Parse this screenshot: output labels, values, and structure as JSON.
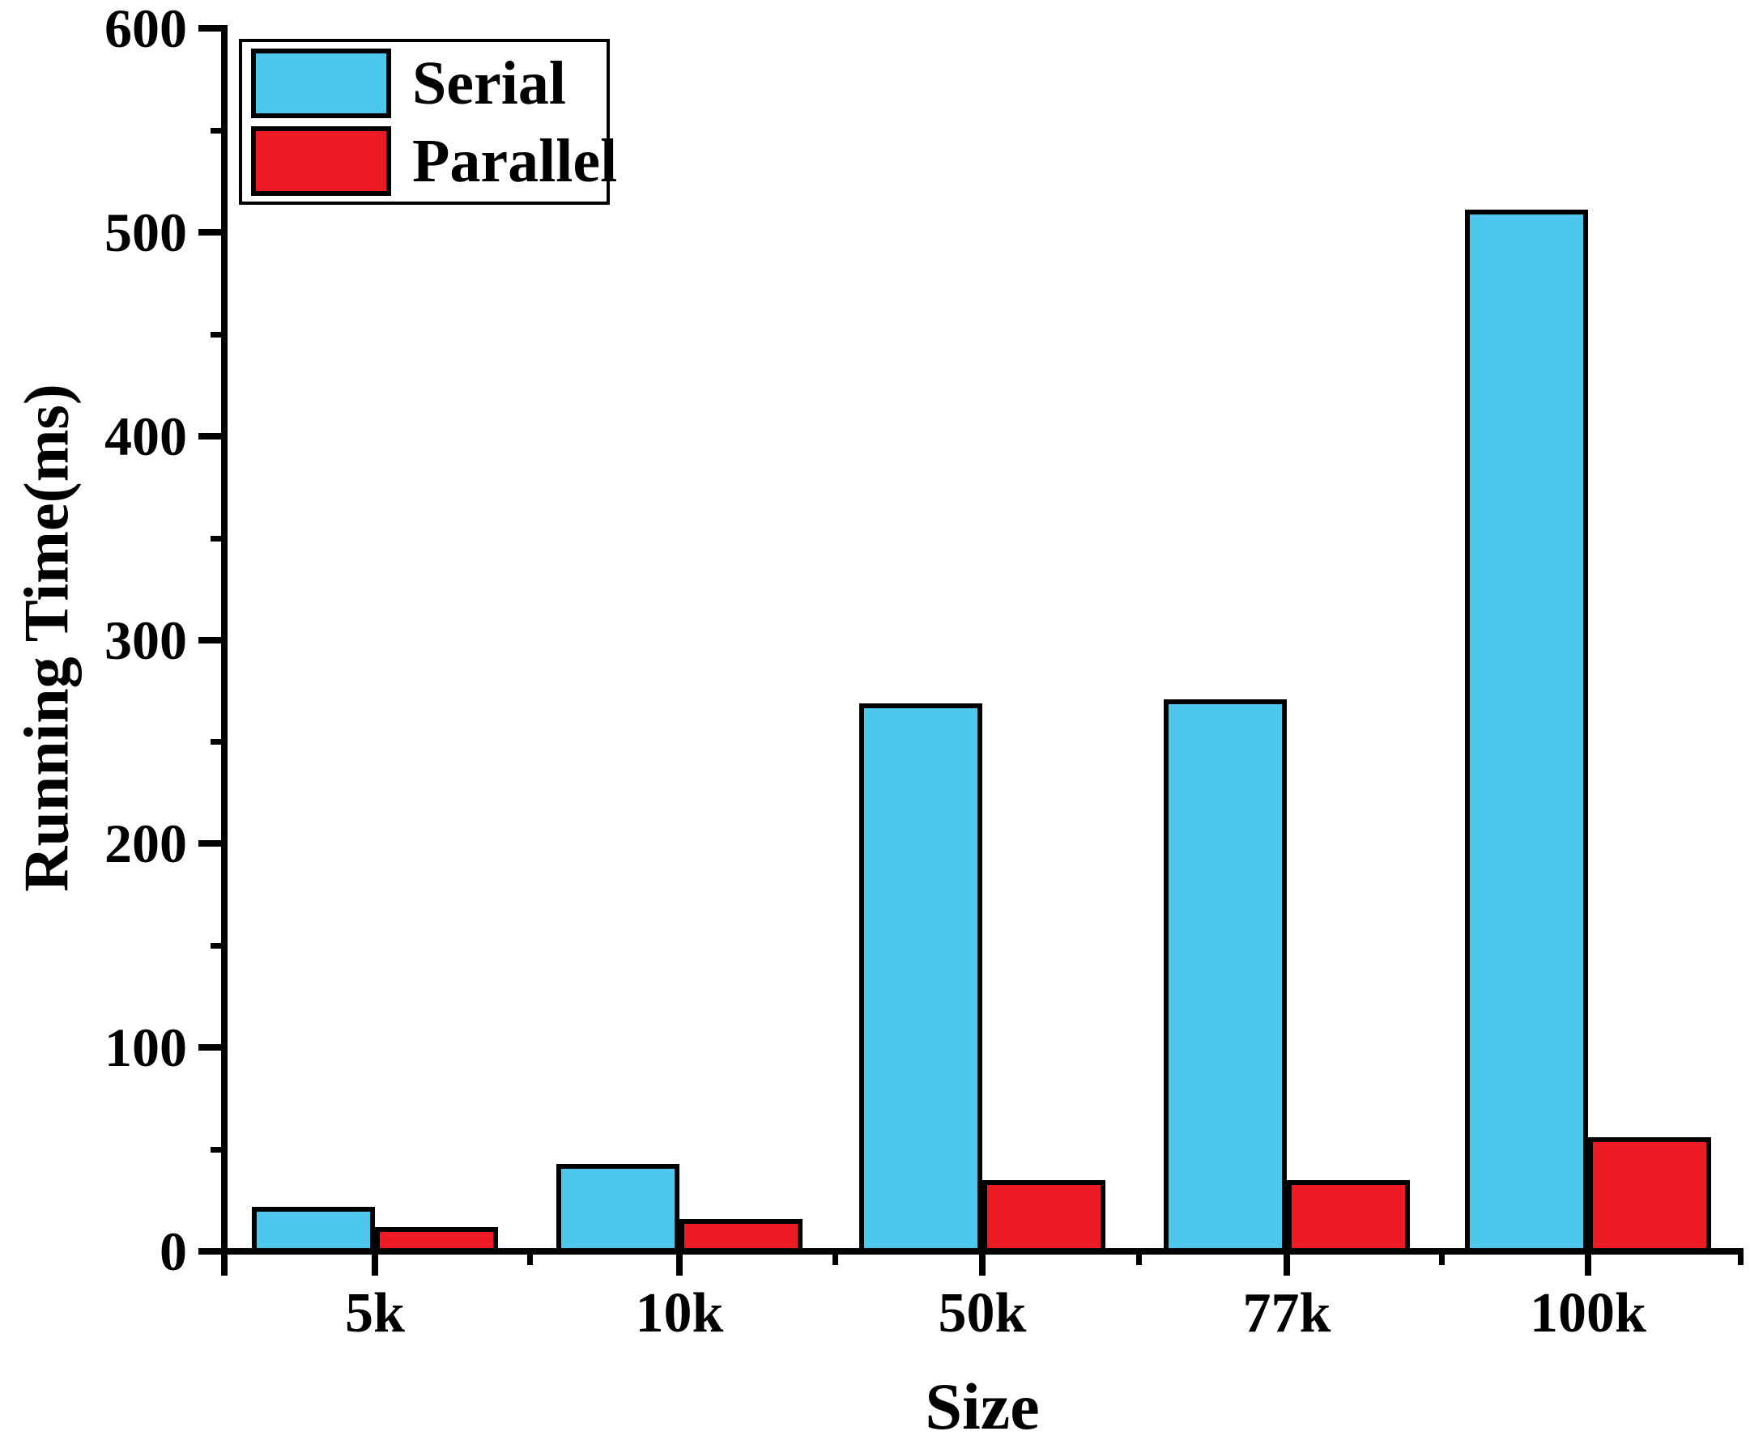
{
  "chart_data": {
    "type": "bar",
    "categories": [
      "5k",
      "10k",
      "50k",
      "77k",
      "100k"
    ],
    "series": [
      {
        "name": "Serial",
        "color": "#4DC8EC",
        "values": [
          22,
          43,
          269,
          271,
          511
        ]
      },
      {
        "name": "Parallel",
        "color": "#ED1C24",
        "values": [
          12,
          16,
          35,
          35,
          56
        ]
      }
    ],
    "title": "",
    "xlabel": "Size",
    "ylabel": "Running Time(ms)",
    "ylim": [
      0,
      600
    ],
    "yticks": [
      0,
      100,
      200,
      300,
      400,
      500,
      600
    ],
    "ytick_minor": [
      50,
      150,
      250,
      350,
      450,
      550
    ],
    "grid": false,
    "legend_position": "top-left",
    "axis_color": "#000000",
    "background_color": "#FFFFFF"
  },
  "legend": {
    "entries": [
      "Serial",
      "Parallel"
    ]
  }
}
